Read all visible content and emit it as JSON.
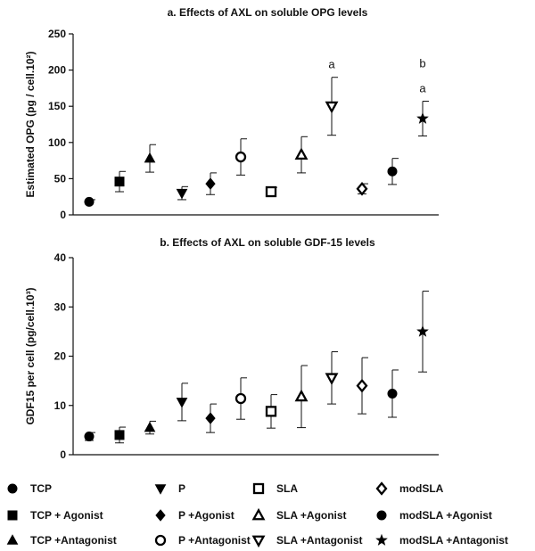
{
  "chart_data": [
    {
      "type": "scatter",
      "title": "a. Effects of AXL on soluble OPG levels",
      "ylabel": "Estimated OPG (pg / cell.10²)",
      "ylim": [
        0,
        250
      ],
      "yticks": [
        "0",
        "50",
        "100",
        "150",
        "200",
        "250"
      ],
      "xlabel": "",
      "grid": false,
      "points": [
        {
          "series": "TCP",
          "mean": 18,
          "sd": 3,
          "marker": "circle-filled",
          "annotation": ""
        },
        {
          "series": "TCP + Agonist",
          "mean": 46,
          "sd": 14,
          "marker": "square-filled",
          "annotation": ""
        },
        {
          "series": "TCP +Antagonist",
          "mean": 78,
          "sd": 19,
          "marker": "triangle-up-filled",
          "annotation": ""
        },
        {
          "series": "P",
          "mean": 30,
          "sd": 9,
          "marker": "triangle-down-filled",
          "annotation": ""
        },
        {
          "series": "P +Agonist",
          "mean": 43,
          "sd": 15,
          "marker": "diamond-filled",
          "annotation": ""
        },
        {
          "series": "P +Antagonist",
          "mean": 80,
          "sd": 25,
          "marker": "circle-open",
          "annotation": ""
        },
        {
          "series": "SLA",
          "mean": 32,
          "sd": 6,
          "marker": "square-open",
          "annotation": ""
        },
        {
          "series": "SLA +Agonist",
          "mean": 83,
          "sd": 25,
          "marker": "triangle-up-open",
          "annotation": ""
        },
        {
          "series": "SLA +Antagonist",
          "mean": 150,
          "sd": 40,
          "marker": "triangle-down-open",
          "annotation": "a"
        },
        {
          "series": "modSLA",
          "mean": 36,
          "sd": 7,
          "marker": "diamond-open",
          "annotation": ""
        },
        {
          "series": "modSLA +Agonist",
          "mean": 60,
          "sd": 18,
          "marker": "circle-filled",
          "annotation": ""
        },
        {
          "series": "modSLA +Antagonist",
          "mean": 133,
          "sd": 24,
          "marker": "star-filled",
          "annotation": "b\na"
        }
      ]
    },
    {
      "type": "scatter",
      "title": "b. Effects of AXL on soluble GDF-15 levels",
      "ylabel": "GDF15 per cell (pg/cell.10³)",
      "ylim": [
        0,
        40
      ],
      "yticks": [
        "0",
        "10",
        "20",
        "30",
        "40"
      ],
      "xlabel": "",
      "grid": false,
      "points": [
        {
          "series": "TCP",
          "mean": 3.7,
          "sd": 0.8,
          "marker": "circle-filled"
        },
        {
          "series": "TCP + Agonist",
          "mean": 4.0,
          "sd": 1.6,
          "marker": "square-filled"
        },
        {
          "series": "TCP +Antagonist",
          "mean": 5.5,
          "sd": 1.3,
          "marker": "triangle-up-filled"
        },
        {
          "series": "P",
          "mean": 10.7,
          "sd": 3.8,
          "marker": "triangle-down-filled"
        },
        {
          "series": "P +Agonist",
          "mean": 7.4,
          "sd": 2.9,
          "marker": "diamond-filled"
        },
        {
          "series": "P +Antagonist",
          "mean": 11.4,
          "sd": 4.2,
          "marker": "circle-open"
        },
        {
          "series": "SLA",
          "mean": 8.8,
          "sd": 3.4,
          "marker": "square-open"
        },
        {
          "series": "SLA +Agonist",
          "mean": 11.8,
          "sd": 6.3,
          "marker": "triangle-up-open"
        },
        {
          "series": "SLA +Antagonist",
          "mean": 15.6,
          "sd": 5.3,
          "marker": "triangle-down-open"
        },
        {
          "series": "modSLA",
          "mean": 14.0,
          "sd": 5.7,
          "marker": "diamond-open"
        },
        {
          "series": "modSLA +Agonist",
          "mean": 12.4,
          "sd": 4.8,
          "marker": "circle-filled"
        },
        {
          "series": "modSLA +Antagonist",
          "mean": 25.0,
          "sd": 8.2,
          "marker": "star-filled"
        }
      ]
    }
  ],
  "legend": {
    "placement": "bottom",
    "entries": [
      {
        "label": "TCP",
        "marker": "circle-filled"
      },
      {
        "label": "P",
        "marker": "triangle-down-filled"
      },
      {
        "label": "SLA",
        "marker": "square-open"
      },
      {
        "label": "modSLA",
        "marker": "diamond-open"
      },
      {
        "label": "TCP + Agonist",
        "marker": "square-filled"
      },
      {
        "label": "P +Agonist",
        "marker": "diamond-filled"
      },
      {
        "label": "SLA +Agonist",
        "marker": "triangle-up-open"
      },
      {
        "label": "modSLA +Agonist",
        "marker": "circle-filled"
      },
      {
        "label": "TCP +Antagonist",
        "marker": "triangle-up-filled"
      },
      {
        "label": "P +Antagonist",
        "marker": "circle-open"
      },
      {
        "label": "SLA +Antagonist",
        "marker": "triangle-down-open"
      },
      {
        "label": "modSLA +Antagonist",
        "marker": "star-filled"
      }
    ]
  }
}
